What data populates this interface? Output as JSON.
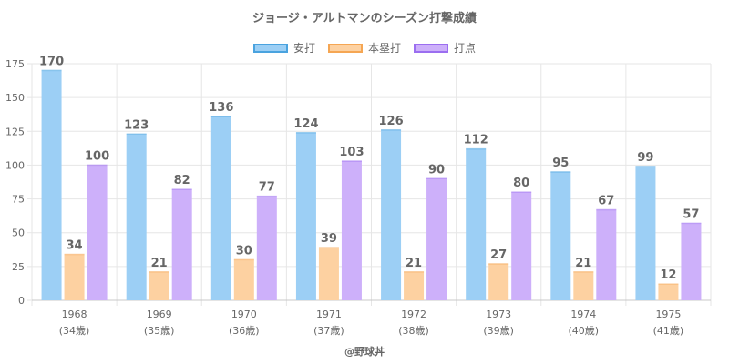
{
  "chart_data": {
    "type": "bar",
    "title": "ジョージ・アルトマンのシーズン打撃成績",
    "categories": [
      "1968",
      "1969",
      "1970",
      "1971",
      "1972",
      "1973",
      "1974",
      "1975"
    ],
    "category_sublabels": [
      "(34歳)",
      "(35歳)",
      "(36歳)",
      "(37歳)",
      "(38歳)",
      "(39歳)",
      "(40歳)",
      "(41歳)"
    ],
    "series": [
      {
        "name": "安打",
        "values": [
          170,
          123,
          136,
          124,
          126,
          112,
          95,
          99
        ],
        "color": "#9ccff5",
        "border": "#4aa3df"
      },
      {
        "name": "本塁打",
        "values": [
          34,
          21,
          30,
          39,
          21,
          27,
          21,
          12
        ],
        "color": "#fdd1a1",
        "border": "#f5a653"
      },
      {
        "name": "打点",
        "values": [
          100,
          82,
          77,
          103,
          90,
          80,
          67,
          57
        ],
        "color": "#cdb0fa",
        "border": "#9b6ef0"
      }
    ],
    "y_ticks": [
      0,
      25,
      50,
      75,
      100,
      125,
      150,
      175
    ],
    "ylim": [
      0,
      175
    ],
    "grid": true,
    "legend_position": "top"
  },
  "footer": "@野球丼"
}
